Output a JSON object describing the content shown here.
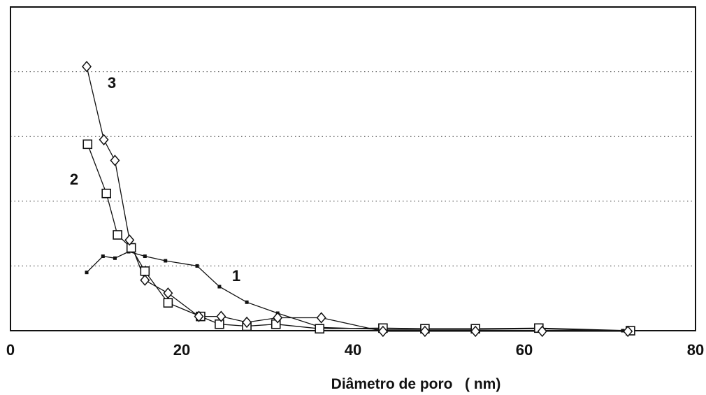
{
  "chart_data": {
    "type": "line",
    "title": "",
    "xlabel": "Diâmetro de poro   ( nm)",
    "ylabel": "",
    "xlim": [
      0,
      80
    ],
    "ylim": [
      0,
      5
    ],
    "x_ticks": [
      "0",
      "20",
      "40",
      "60",
      "80"
    ],
    "gridlines_y": [
      1,
      2,
      3,
      4
    ],
    "grid": "horizontal dotted",
    "legend": "none (series labelled inline)",
    "series": [
      {
        "name": "1",
        "marker": "small-filled-square",
        "x": [
          8.9,
          10.8,
          12.2,
          13.8,
          15.7,
          18.1,
          21.8,
          24.4,
          27.6,
          31.2,
          36.3,
          43.5,
          48.4,
          54.3,
          61.7,
          71.5
        ],
        "y": [
          0.9,
          1.15,
          1.12,
          1.22,
          1.15,
          1.08,
          1.0,
          0.68,
          0.44,
          0.27,
          0.05,
          0.02,
          0.02,
          0.02,
          0.03,
          0.0
        ]
      },
      {
        "name": "2",
        "marker": "open-square",
        "x": [
          9.0,
          11.2,
          12.5,
          14.1,
          15.7,
          18.4,
          22.2,
          24.4,
          27.6,
          31.0,
          36.1,
          43.5,
          48.4,
          54.3,
          61.7,
          72.4
        ],
        "y": [
          2.88,
          2.12,
          1.48,
          1.28,
          0.92,
          0.43,
          0.22,
          0.1,
          0.07,
          0.1,
          0.03,
          0.04,
          0.03,
          0.03,
          0.04,
          0.0
        ]
      },
      {
        "name": "3",
        "marker": "open-diamond",
        "x": [
          8.9,
          10.9,
          12.2,
          13.9,
          15.7,
          18.4,
          22.0,
          24.6,
          27.6,
          31.2,
          36.3,
          43.5,
          48.4,
          54.3,
          62.1,
          72.1
        ],
        "y": [
          4.08,
          2.95,
          2.63,
          1.4,
          0.78,
          0.58,
          0.22,
          0.22,
          0.13,
          0.2,
          0.2,
          -0.01,
          -0.01,
          -0.01,
          -0.01,
          -0.01
        ]
      }
    ]
  }
}
